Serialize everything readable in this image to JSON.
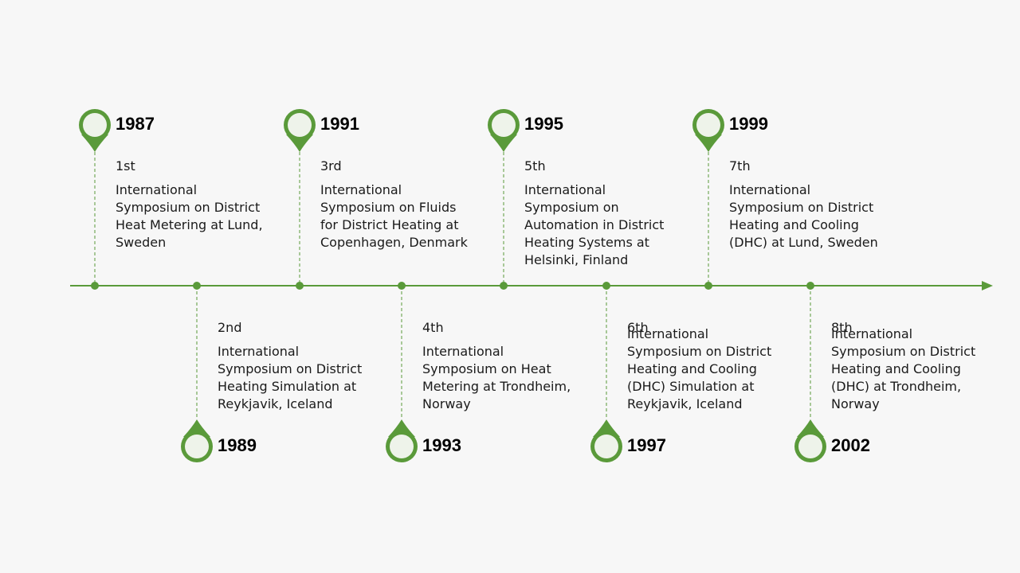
{
  "accent_color": "#5a9a3a",
  "pin_fill": "#eef3ea",
  "events": [
    {
      "year": "1987",
      "ordinal": "1st",
      "description": "International Symposium on District Heat Metering at Lund, Sweden",
      "side": "top"
    },
    {
      "year": "1989",
      "ordinal": "2nd",
      "description": "International Symposium on District Heating Simulation at Reykjavik, Iceland",
      "side": "bottom"
    },
    {
      "year": "1991",
      "ordinal": "3rd",
      "description": "International Symposium on Fluids for District Heating at Copenhagen, Denmark",
      "side": "top"
    },
    {
      "year": "1993",
      "ordinal": "4th",
      "description": "International Symposium on Heat Metering at Trondheim, Norway",
      "side": "bottom"
    },
    {
      "year": "1995",
      "ordinal": "5th",
      "description": "International Symposium on Automation in District Heating Systems at Helsinki, Finland",
      "side": "top"
    },
    {
      "year": "1997",
      "ordinal": "6th",
      "description": "International Symposium on District Heating and Cooling (DHC) Simulation at Reykjavik, Iceland",
      "side": "bottom"
    },
    {
      "year": "1999",
      "ordinal": "7th",
      "description": "International Symposium on District Heating and Cooling (DHC) at Lund, Sweden",
      "side": "top"
    },
    {
      "year": "2002",
      "ordinal": "8th",
      "description": "International Symposium on District Heating and Cooling (DHC) at Trondheim, Norway",
      "side": "bottom"
    }
  ]
}
